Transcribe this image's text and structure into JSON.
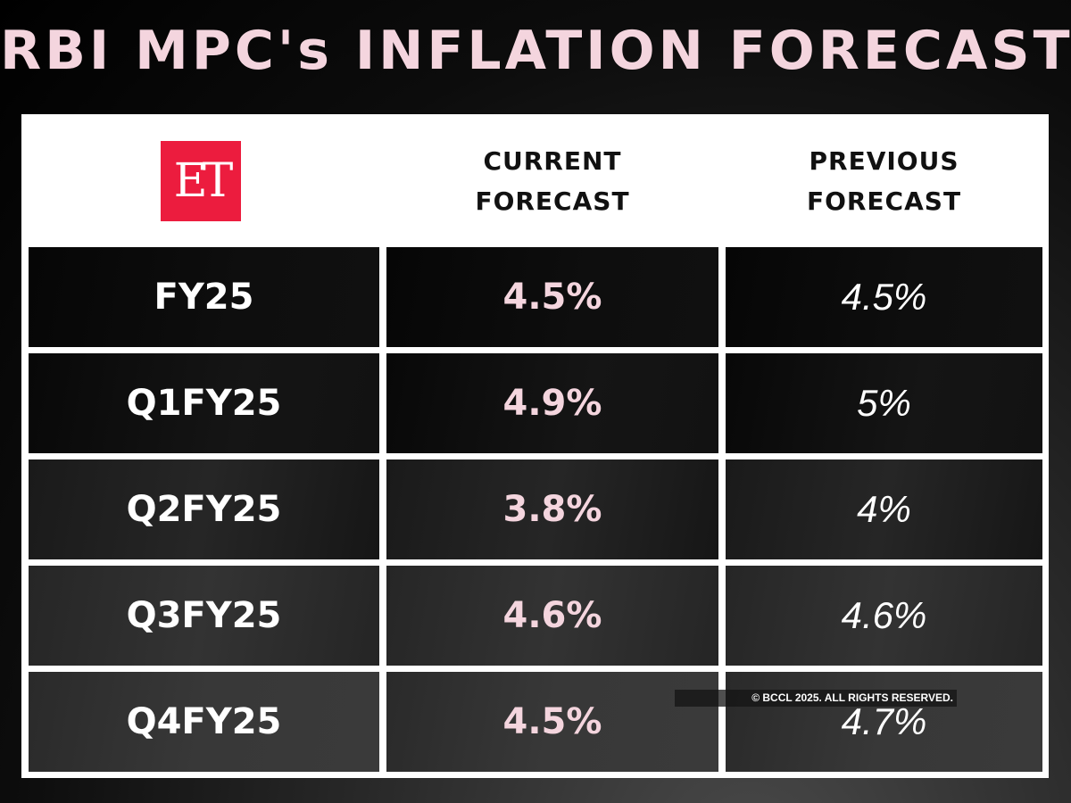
{
  "title": "RBI MPC's INFLATION FORECAST",
  "logo": {
    "text": "ET",
    "color": "#ec1c3e"
  },
  "watermark": "© BCCL 2025. ALL RIGHTS RESERVED.",
  "chart_data": {
    "type": "table",
    "title": "RBI MPC's INFLATION FORECAST",
    "columns": [
      "",
      "CURRENT FORECAST",
      "PREVIOUS FORECAST"
    ],
    "header": {
      "current_1": "CURRENT",
      "current_2": "FORECAST",
      "previous_1": "PREVIOUS",
      "previous_2": "FORECAST"
    },
    "rows": [
      {
        "period": "FY25",
        "current": "4.5%",
        "previous": "4.5%"
      },
      {
        "period": "Q1FY25",
        "current": "4.9%",
        "previous": "5%"
      },
      {
        "period": "Q2FY25",
        "current": "3.8%",
        "previous": "4%"
      },
      {
        "period": "Q3FY25",
        "current": "4.6%",
        "previous": "4.6%"
      },
      {
        "period": "Q4FY25",
        "current": "4.5%",
        "previous": "4.7%"
      }
    ]
  }
}
